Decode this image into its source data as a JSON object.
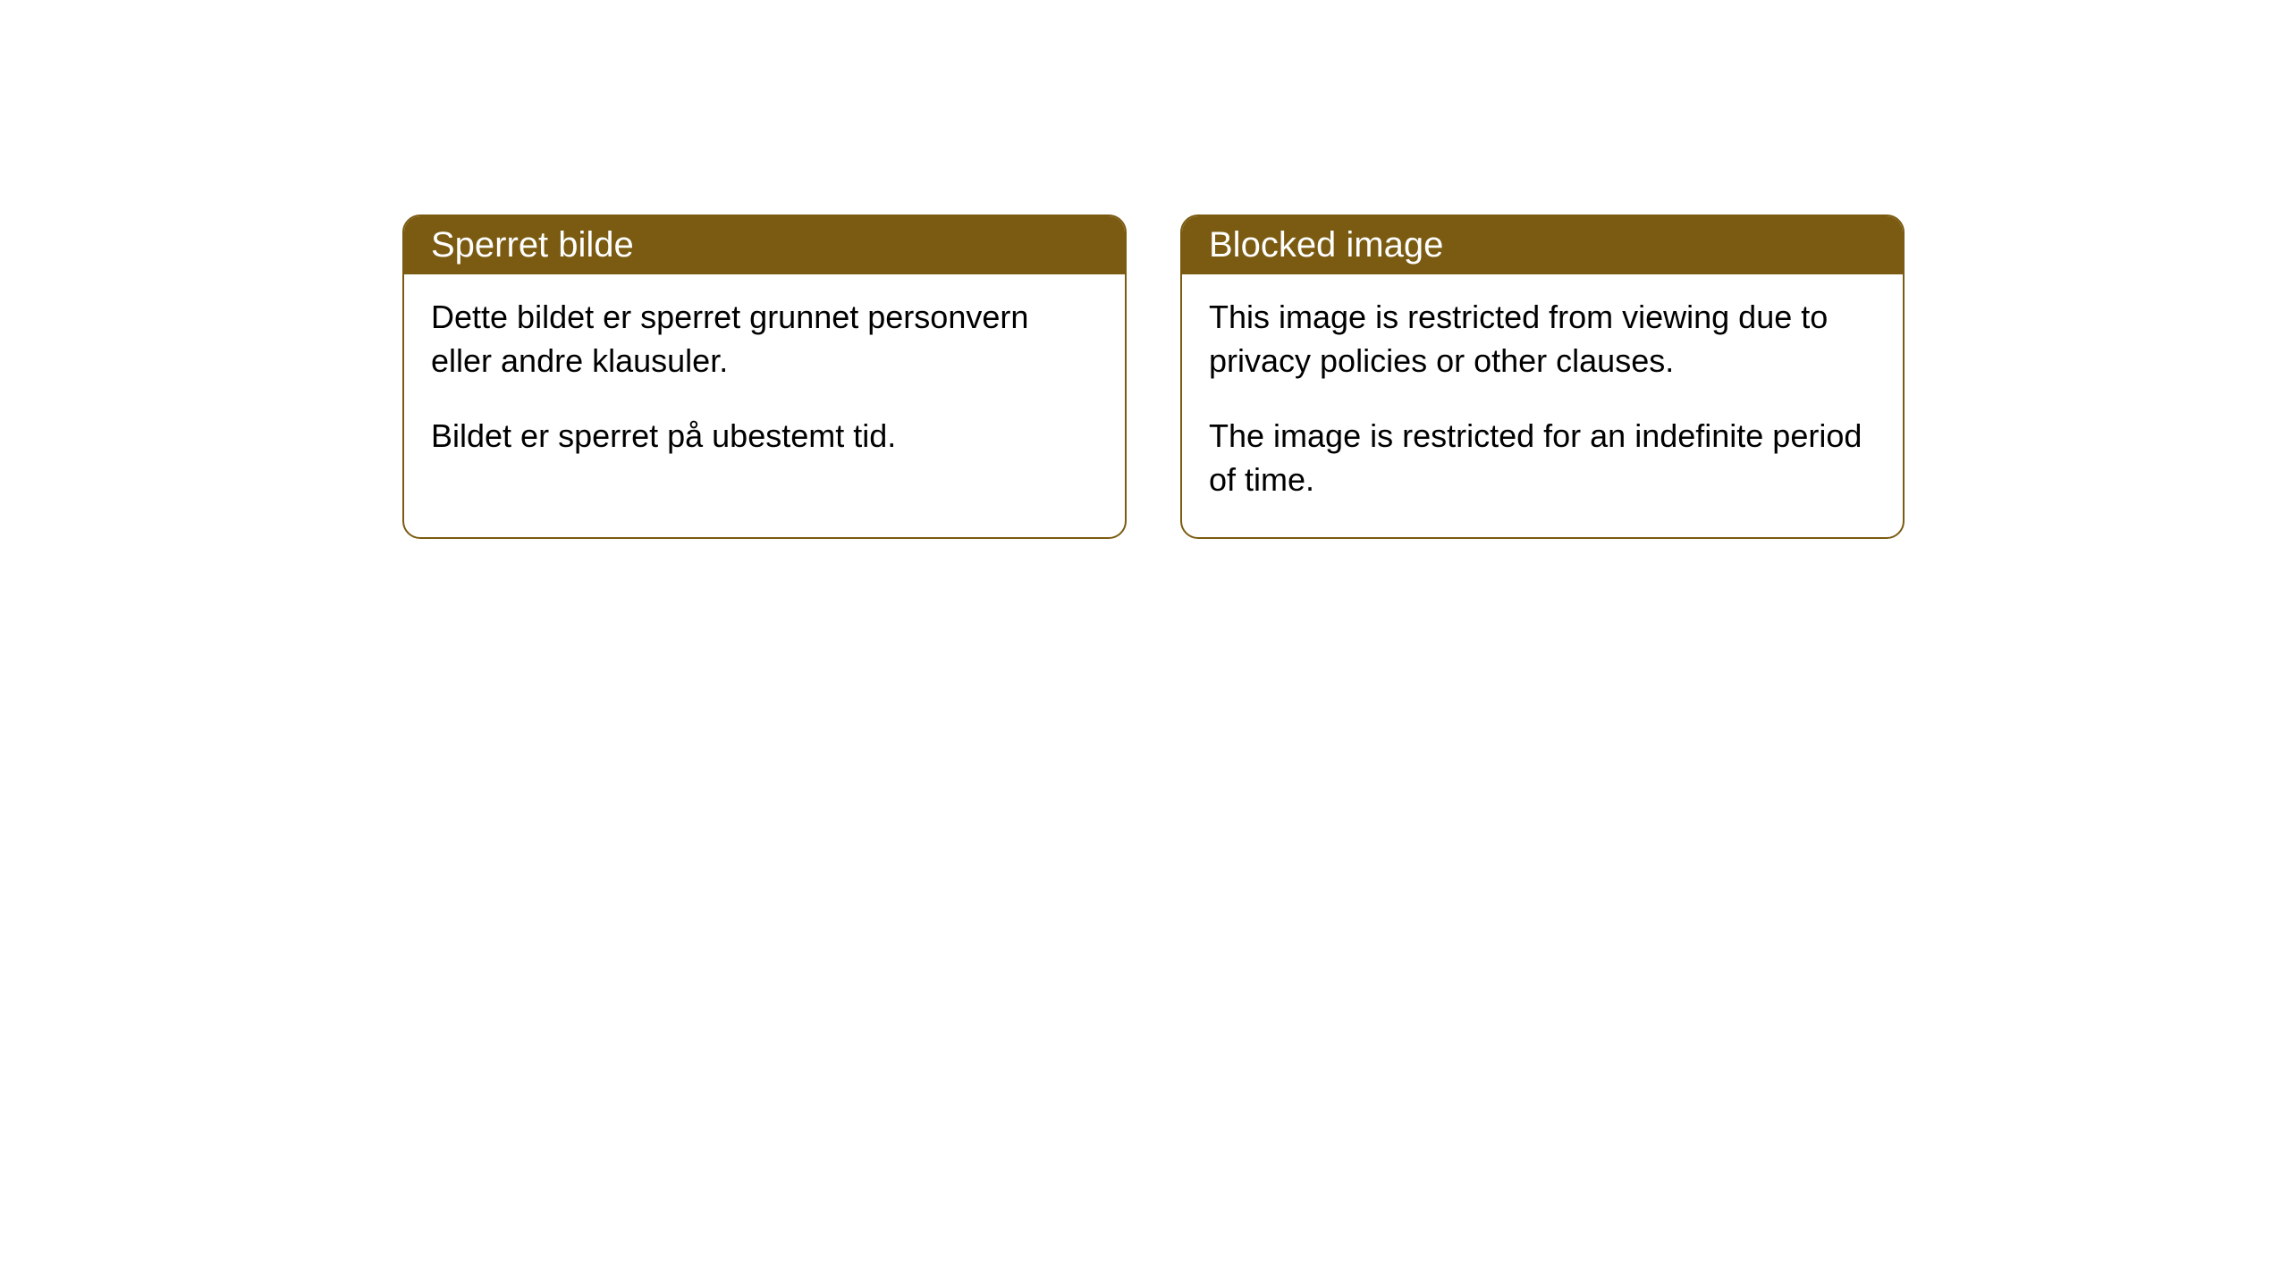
{
  "cards": [
    {
      "title": "Sperret bilde",
      "paragraph1": "Dette bildet er sperret grunnet personvern eller andre klausuler.",
      "paragraph2": "Bildet er sperret på ubestemt tid."
    },
    {
      "title": "Blocked image",
      "paragraph1": "This image is restricted from viewing due to privacy policies or other clauses.",
      "paragraph2": "The image is restricted for an indefinite period of time."
    }
  ],
  "styling": {
    "header_bg_color": "#7a5b11",
    "header_text_color": "#ffffff",
    "border_color": "#7a5b11",
    "body_bg_color": "#ffffff",
    "body_text_color": "#000000",
    "border_radius": 20,
    "header_fontsize": 40,
    "body_fontsize": 36
  }
}
